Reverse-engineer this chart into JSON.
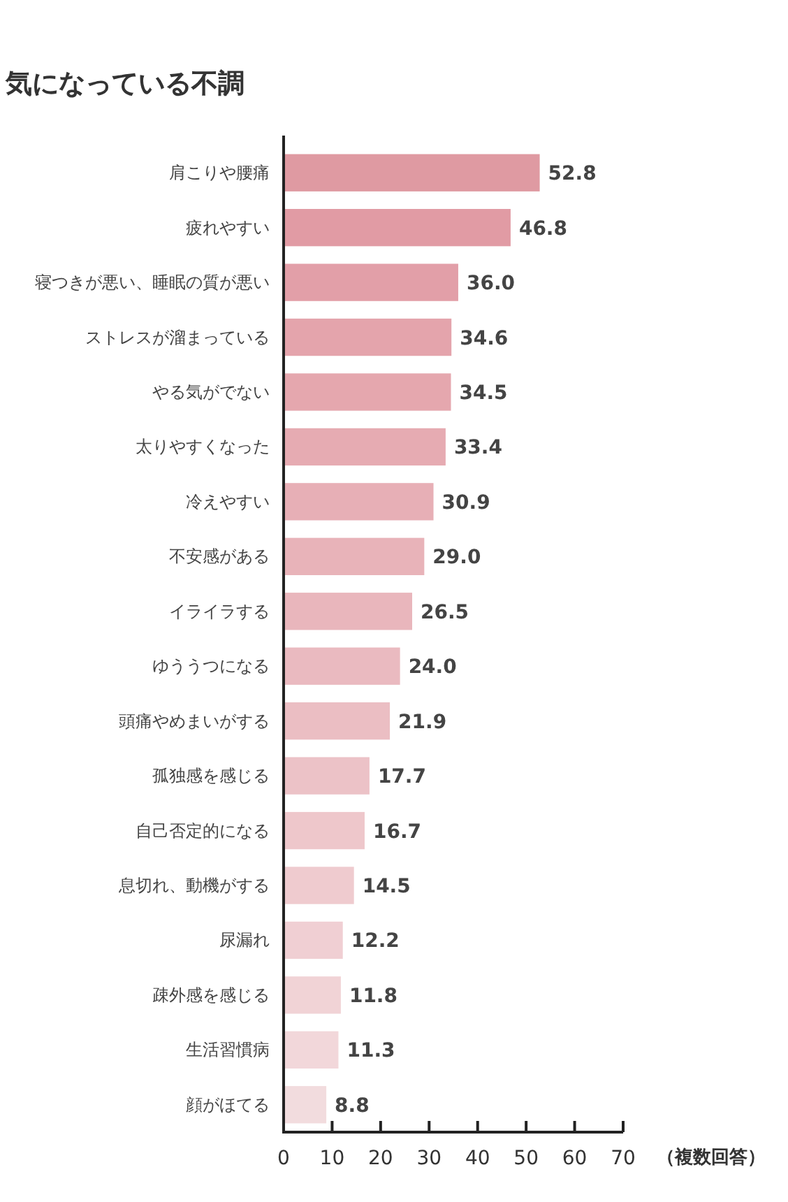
{
  "chart_data": {
    "type": "bar",
    "orientation": "horizontal",
    "title": "気になっている不調",
    "xlabel": "（複数回答）",
    "categories": [
      "肩こりや腰痛",
      "疲れやすい",
      "寝つきが悪い、睡眠の質が悪い",
      "ストレスが溜まっている",
      "やる気がでない",
      "太りやすくなった",
      "冷えやすい",
      "不安感がある",
      "イライラする",
      "ゆううつになる",
      "頭痛やめまいがする",
      "孤独感を感じる",
      "自己否定的になる",
      "息切れ、動機がする",
      "尿漏れ",
      "疎外感を感じる",
      "生活習慣病",
      "顔がほてる"
    ],
    "values": [
      52.8,
      46.8,
      36.0,
      34.6,
      34.5,
      33.4,
      30.9,
      29.0,
      26.5,
      24.0,
      21.9,
      17.7,
      16.7,
      14.5,
      12.2,
      11.8,
      11.3,
      8.8
    ],
    "colors": [
      "#df9aa2",
      "#e19ba4",
      "#e29fa8",
      "#e4a4ac",
      "#e5a7ae",
      "#e6abb2",
      "#e7afb6",
      "#e8b3b9",
      "#e9b6bc",
      "#eabac0",
      "#ebbec3",
      "#ecc2c7",
      "#eec7cb",
      "#efcbcf",
      "#f0cfd3",
      "#f1d3d6",
      "#f2d7da",
      "#f2dcde"
    ],
    "value_labels": [
      "52.8",
      "46.8",
      "36.0",
      "34.6",
      "34.5",
      "33.4",
      "30.9",
      "29.0",
      "26.5",
      "24.0",
      "21.9",
      "17.7",
      "16.7",
      "14.5",
      "12.2",
      "11.8",
      "11.3",
      "8.8"
    ],
    "xlim": [
      0,
      70
    ],
    "xticks": [
      0,
      10,
      20,
      30,
      40,
      50,
      60,
      70
    ],
    "grid": false
  }
}
